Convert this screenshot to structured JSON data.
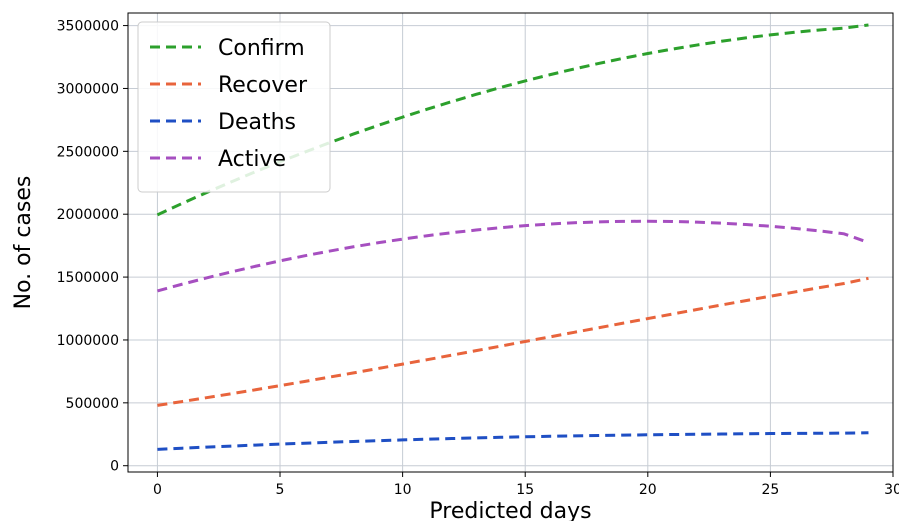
{
  "chart_data": {
    "type": "line",
    "title": "",
    "xlabel": "Predicted days",
    "ylabel": "No. of cases",
    "xlim": [
      -1.2,
      30
    ],
    "ylim": [
      -50000,
      3600000
    ],
    "xticks": [
      0,
      5,
      10,
      15,
      20,
      25,
      30
    ],
    "yticks": [
      0,
      500000,
      1000000,
      1500000,
      2000000,
      2500000,
      3000000,
      3500000
    ],
    "grid": true,
    "legend_position": "top-left",
    "line_style": "dashed",
    "x": [
      0,
      1,
      2,
      3,
      4,
      5,
      6,
      7,
      8,
      9,
      10,
      11,
      12,
      13,
      14,
      15,
      16,
      17,
      18,
      19,
      20,
      21,
      22,
      23,
      24,
      25,
      26,
      27,
      28,
      29
    ],
    "series": [
      {
        "name": "Confirm",
        "color": "#2ca02c",
        "values": [
          1995000,
          2085000,
          2172000,
          2256000,
          2338000,
          2417000,
          2493000,
          2567000,
          2638000,
          2706000,
          2772000,
          2835000,
          2895000,
          2953000,
          3008000,
          3060000,
          3109000,
          3155000,
          3199000,
          3240000,
          3278000,
          3313000,
          3345000,
          3375000,
          3402000,
          3426000,
          3447000,
          3465000,
          3480000,
          3505000
        ]
      },
      {
        "name": "Recover",
        "color": "#e8643c",
        "values": [
          480000,
          510000,
          541000,
          572000,
          604000,
          637000,
          670000,
          704000,
          738000,
          773000,
          808000,
          843000,
          879000,
          915000,
          951000,
          988000,
          1024000,
          1061000,
          1097000,
          1134000,
          1170000,
          1206000,
          1242000,
          1278000,
          1313000,
          1348000,
          1382000,
          1416000,
          1449000,
          1490000
        ]
      },
      {
        "name": "Deaths",
        "color": "#1f4fc4",
        "values": [
          130000,
          139000,
          148000,
          156000,
          164000,
          172000,
          179000,
          186000,
          193000,
          199000,
          205000,
          211000,
          216000,
          221000,
          226000,
          230000,
          234000,
          237000,
          240000,
          243000,
          246000,
          248000,
          250000,
          252000,
          254000,
          256000,
          257000,
          258000,
          259000,
          262000
        ]
      },
      {
        "name": "Active",
        "color": "#a64fc0",
        "values": [
          1390000,
          1443000,
          1493000,
          1541000,
          1586000,
          1629000,
          1669000,
          1706000,
          1741000,
          1773000,
          1802000,
          1829000,
          1853000,
          1874000,
          1893000,
          1909000,
          1922000,
          1932000,
          1939000,
          1943000,
          1944000,
          1942000,
          1937000,
          1929000,
          1918000,
          1904000,
          1887000,
          1867000,
          1844000,
          1775000
        ]
      }
    ]
  }
}
